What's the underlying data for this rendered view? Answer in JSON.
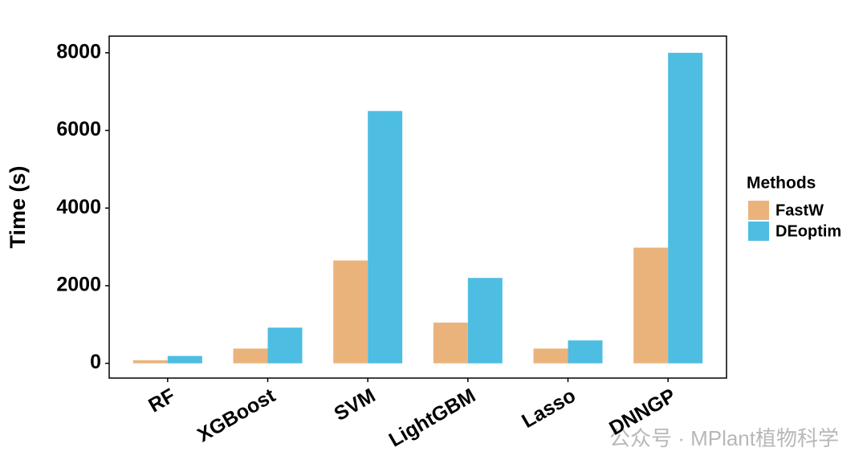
{
  "chart_data": {
    "type": "bar",
    "y_label": "Time (s)",
    "categories": [
      "RF",
      "XGBoost",
      "SVM",
      "LightGBM",
      "Lasso",
      "DNNGP"
    ],
    "series": [
      {
        "name": "FastW",
        "color": "#ebb37c",
        "values": [
          80,
          380,
          2650,
          1050,
          380,
          2980
        ]
      },
      {
        "name": "DEoptim",
        "color": "#4ebde2",
        "values": [
          190,
          920,
          6500,
          2200,
          590,
          8000
        ]
      }
    ],
    "ylim": [
      -380,
      8430
    ],
    "yticks": [
      0,
      2000,
      4000,
      6000,
      8000
    ],
    "legend_title": "Methods",
    "legend_position": "right",
    "watermark": "公众号 · MPlant植物科学"
  }
}
